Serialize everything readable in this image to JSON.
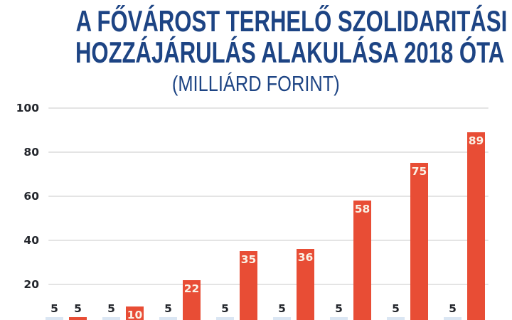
{
  "header": {
    "title_lines": [
      "A FŐVÁROST TERHELŐ SZOLIDARITÁSI",
      "HOZZÁJÁRULÁS ALAKULÁSA 2018 ÓTA"
    ],
    "subtitle": "(MILLIÁRD FORINT)"
  },
  "colors": {
    "title_navy": "#1d4484",
    "bar_red": "#e84d35",
    "bar_light_blue": "#dae6f3",
    "value_label_cream": "#faf2e6",
    "axis_label_dark": "#24272d",
    "gridline_gray": "#e4e4e4"
  },
  "chart_data": {
    "type": "bar",
    "title": "A FŐVÁROST TERHELŐ SZOLIDARITÁSI HOZZÁJÁRULÁS ALAKULÁSA 2018 ÓTA",
    "subtitle": "(MILLIÁRD FORINT)",
    "unit": "milliárd forint",
    "ylim": [
      0,
      100
    ],
    "y_ticks": [
      100,
      80,
      60,
      40,
      20
    ],
    "grid": true,
    "legend_position": "none",
    "x_tick_labels_visible": false,
    "group_count": 8,
    "series": [
      {
        "name": "light-blue-bars",
        "color": "#dae6f3",
        "values": [
          5,
          5,
          5,
          5,
          5,
          5,
          5,
          5
        ]
      },
      {
        "name": "red-bars",
        "color": "#e84d35",
        "values": [
          5,
          10,
          22,
          35,
          36,
          58,
          75,
          89
        ]
      }
    ],
    "data_labels": {
      "above_bar_color": "#24272d",
      "inside_bar_color": "#faf2e6"
    }
  }
}
